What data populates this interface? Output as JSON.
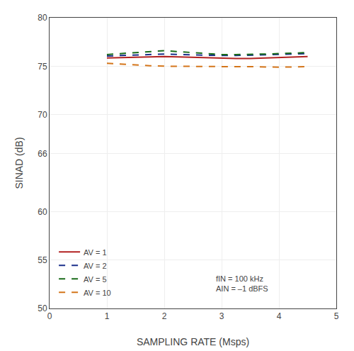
{
  "chart_data": {
    "type": "line",
    "xlabel": "SAMPLING RATE (Msps)",
    "ylabel": "SINAD (dB)",
    "xlim": [
      0,
      5
    ],
    "ylim": [
      50,
      80
    ],
    "xticks": [
      0,
      1,
      2,
      3,
      4,
      5
    ],
    "yticks": [
      50,
      55,
      60,
      66,
      70,
      75,
      80
    ],
    "grid": true,
    "legend": "lower left",
    "annotations": [
      "fIN = 100 kHz",
      "AIN = –1 dBFS"
    ],
    "x": [
      1.0,
      1.25,
      1.5,
      1.75,
      2.0,
      2.25,
      2.5,
      2.75,
      3.0,
      3.25,
      3.5,
      3.75,
      4.0,
      4.25,
      4.5
    ],
    "series": [
      {
        "name": "AV = 1",
        "color": "#b22222",
        "line_style": "solid",
        "values": [
          75.85,
          75.9,
          75.95,
          75.95,
          76.0,
          75.95,
          75.9,
          75.85,
          75.8,
          75.8,
          75.8,
          75.85,
          75.9,
          75.95,
          76.0
        ]
      },
      {
        "name": "AV = 2",
        "color": "#1a2f8a",
        "line_style": "dashed",
        "values": [
          76.05,
          76.1,
          76.15,
          76.2,
          76.25,
          76.2,
          76.15,
          76.1,
          76.1,
          76.1,
          76.15,
          76.2,
          76.25,
          76.28,
          76.3
        ]
      },
      {
        "name": "AV = 5",
        "color": "#1a6b1a",
        "line_style": "dashed",
        "values": [
          76.2,
          76.3,
          76.45,
          76.55,
          76.6,
          76.5,
          76.4,
          76.3,
          76.2,
          76.2,
          76.2,
          76.25,
          76.3,
          76.35,
          76.4
        ]
      },
      {
        "name": "AV = 10",
        "color": "#d4751a",
        "line_style": "dashed",
        "values": [
          75.3,
          75.2,
          75.1,
          75.05,
          75.0,
          74.98,
          74.97,
          74.96,
          74.95,
          74.95,
          74.95,
          74.92,
          74.9,
          74.92,
          74.95
        ]
      }
    ]
  }
}
